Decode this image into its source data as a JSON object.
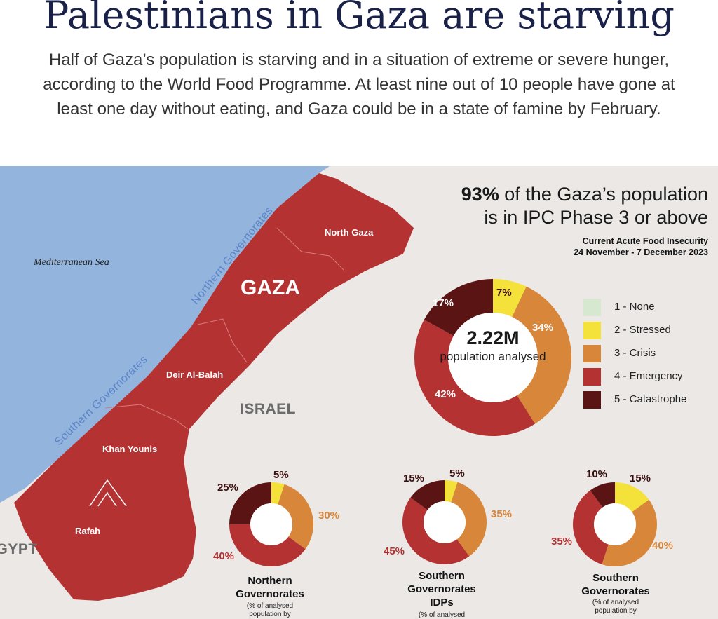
{
  "header": {
    "title": "Palestinians in Gaza are starving",
    "intro": "Half of Gaza’s population is starving and in a situation of extreme or severe hunger, according to the World Food Programme. At least nine out of 10 people have gone at least one day without eating, and Gaza could be in a state of famine by February."
  },
  "map": {
    "sea_label": "Mediterranean Sea",
    "region_label": "GAZA",
    "israel_label": "ISRAEL",
    "egypt_label": "EGYPT",
    "northern_label": "Northern Governorates",
    "southern_label": "Southern Governorates",
    "cities": [
      "North Gaza",
      "Deir Al-Balah",
      "Khan Younis",
      "Rafah"
    ],
    "colors": {
      "sea": "#93b4dd",
      "land": "#eae7e4",
      "gaza": "#b53233"
    }
  },
  "headline": {
    "bold": "93%",
    "line1_rest": " of the Gaza’s population",
    "line2": "is in IPC Phase 3 or above"
  },
  "subhead": {
    "line1": "Current Acute Food Insecurity",
    "line2": "24 November - 7 December 2023"
  },
  "legend": [
    {
      "label": "1 - None",
      "color": "#d6e8cf"
    },
    {
      "label": "2 - Stressed",
      "color": "#f4e23a"
    },
    {
      "label": "3 - Crisis",
      "color": "#d8873a"
    },
    {
      "label": "4 - Emergency",
      "color": "#b53233"
    },
    {
      "label": "5 - Catastrophe",
      "color": "#5a1414"
    }
  ],
  "chart_data": [
    {
      "type": "pie",
      "title": "",
      "center_value": "2.22M",
      "center_label": "population analysed",
      "categories": [
        "2 - Stressed",
        "3 - Crisis",
        "4 - Emergency",
        "5 - Catastrophe"
      ],
      "values": [
        7,
        34,
        42,
        17
      ],
      "labels": [
        "7%",
        "34%",
        "42%",
        "17%"
      ]
    },
    {
      "type": "pie",
      "title_lines": [
        "Northern",
        "Governorates"
      ],
      "note_lines": [
        "(% of analysed",
        "population by"
      ],
      "categories": [
        "2 - Stressed",
        "3 - Crisis",
        "4 - Emergency",
        "5 - Catastrophe"
      ],
      "values": [
        5,
        30,
        40,
        25
      ],
      "labels": [
        "5%",
        "30%",
        "40%",
        "25%"
      ]
    },
    {
      "type": "pie",
      "title_lines": [
        "Southern",
        "Governorates",
        "IDPs"
      ],
      "note_lines": [
        "(% of analysed"
      ],
      "categories": [
        "2 - Stressed",
        "3 - Crisis",
        "4 - Emergency",
        "5 - Catastrophe"
      ],
      "values": [
        5,
        35,
        45,
        15
      ],
      "labels": [
        "5%",
        "35%",
        "45%",
        "15%"
      ]
    },
    {
      "type": "pie",
      "title_lines": [
        "Southern",
        "Governorates"
      ],
      "note_lines": [
        "(% of analysed",
        "population by"
      ],
      "categories": [
        "2 - Stressed",
        "3 - Crisis",
        "4 - Emergency",
        "5 - Catastrophe"
      ],
      "values": [
        15,
        40,
        35,
        10
      ],
      "labels": [
        "15%",
        "40%",
        "35%",
        "10%"
      ]
    }
  ]
}
